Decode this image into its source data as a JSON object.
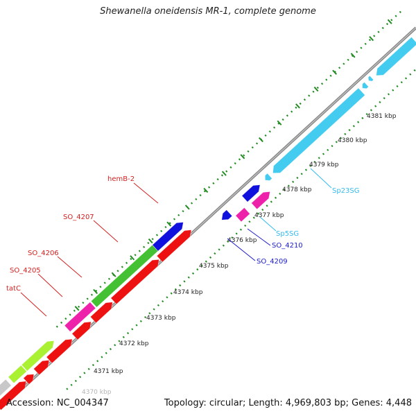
{
  "title": "Shewanella oneidensis MR-1, complete genome",
  "footer": {
    "accession": "Accession: NC_004347",
    "summary": "Topology: circular; Length: 4,969,803 bp; Genes: 4,448"
  },
  "ticks": [
    "4370 kbp",
    "4371 kbp",
    "4372 kbp",
    "4373 kbp",
    "4374 kbp",
    "4375 kbp",
    "4376 kbp",
    "4377 kbp",
    "4378 kbp",
    "4379 kbp",
    "4380 kbp",
    "4381 kbp"
  ],
  "labels": [
    {
      "text": "hemB-2",
      "color": "#d42020"
    },
    {
      "text": "SO_4207",
      "color": "#d42020"
    },
    {
      "text": "SO_4206",
      "color": "#d42020"
    },
    {
      "text": "SO_4205",
      "color": "#d42020"
    },
    {
      "text": "tatC",
      "color": "#d42020"
    },
    {
      "text": "Sp23SG",
      "color": "#33bbee"
    },
    {
      "text": "Sp5SG",
      "color": "#33bbee"
    },
    {
      "text": "SO_4210",
      "color": "#1a1acc"
    },
    {
      "text": "SO_4209",
      "color": "#1a1acc"
    }
  ],
  "colors": {
    "cds_red": "#ee1111",
    "cds_blue": "#1111dd",
    "cds_magenta": "#ee22aa",
    "cds_green": "#44c033",
    "cds_lime": "#aaf033",
    "cds_gray": "#c8c8c8",
    "rrna_cyan": "#44ccf0",
    "backbone": "#888888",
    "tick_green": "#228b22"
  }
}
